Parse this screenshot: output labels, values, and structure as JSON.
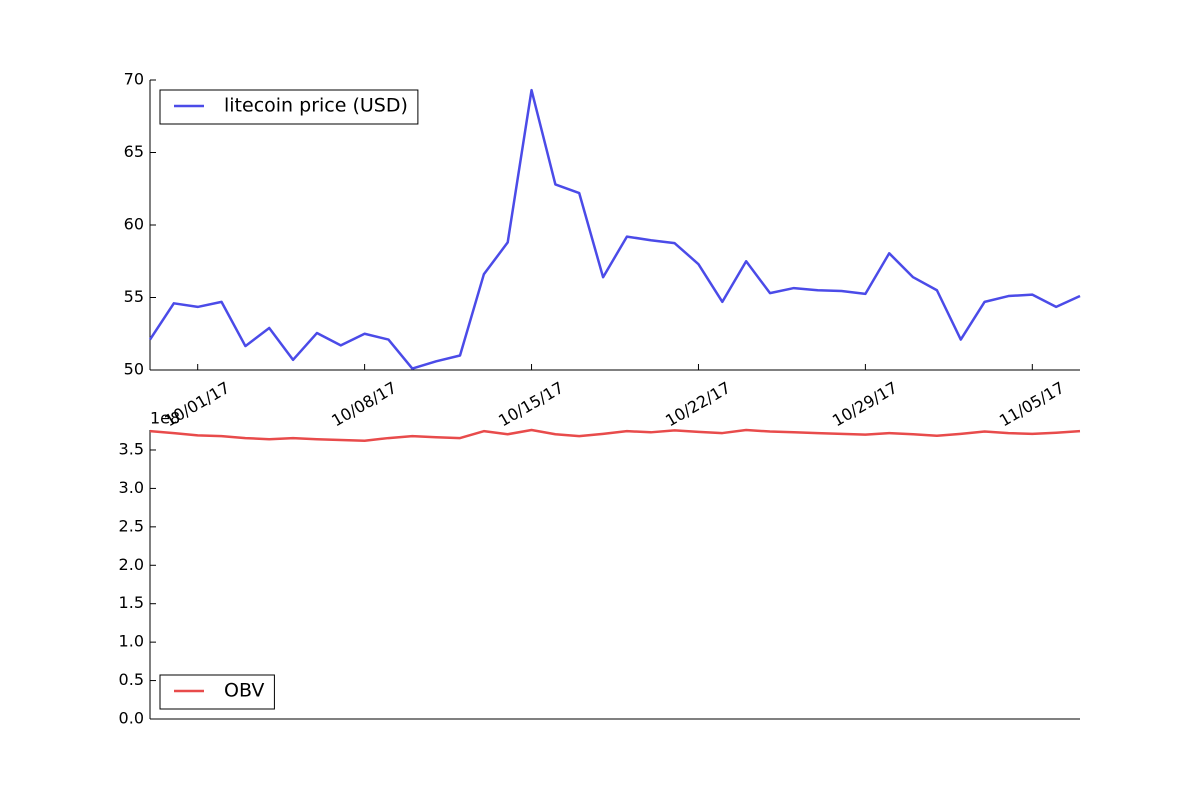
{
  "chart_data": [
    {
      "type": "line",
      "x": [
        "09/29/17",
        "09/30/17",
        "10/01/17",
        "10/02/17",
        "10/03/17",
        "10/04/17",
        "10/05/17",
        "10/06/17",
        "10/07/17",
        "10/08/17",
        "10/09/17",
        "10/10/17",
        "10/11/17",
        "10/12/17",
        "10/13/17",
        "10/14/17",
        "10/15/17",
        "10/16/17",
        "10/17/17",
        "10/18/17",
        "10/19/17",
        "10/20/17",
        "10/21/17",
        "10/22/17",
        "10/23/17",
        "10/24/17",
        "10/25/17",
        "10/26/17",
        "10/27/17",
        "10/28/17",
        "10/29/17",
        "10/30/17",
        "10/31/17",
        "11/01/17",
        "11/02/17",
        "11/03/17",
        "11/04/17",
        "11/05/17",
        "11/06/17",
        "11/07/17"
      ],
      "series": [
        {
          "name": "litecoin price (USD)",
          "color": "#4b4be8",
          "values": [
            52.1,
            54.6,
            54.35,
            54.7,
            51.65,
            52.9,
            50.7,
            52.55,
            51.7,
            52.5,
            52.1,
            50.1,
            50.6,
            51.0,
            56.6,
            58.8,
            69.3,
            62.8,
            62.2,
            56.4,
            59.2,
            58.95,
            58.75,
            57.3,
            54.7,
            57.5,
            55.3,
            55.65,
            55.5,
            55.45,
            55.25,
            58.05,
            56.4,
            55.5,
            52.1,
            54.7,
            55.1,
            55.2,
            54.35,
            55.1
          ]
        }
      ],
      "xlim": [
        "09/29/17",
        "11/07/17"
      ],
      "xticks": [
        "10/01/17",
        "10/08/17",
        "10/15/17",
        "10/22/17",
        "10/29/17",
        "11/05/17"
      ],
      "ylim": [
        50,
        70
      ],
      "yticks": [
        50,
        55,
        60,
        65,
        70
      ],
      "legend": "upper left"
    },
    {
      "type": "line",
      "x": [
        "09/29/17",
        "09/30/17",
        "10/01/17",
        "10/02/17",
        "10/03/17",
        "10/04/17",
        "10/05/17",
        "10/06/17",
        "10/07/17",
        "10/08/17",
        "10/09/17",
        "10/10/17",
        "10/11/17",
        "10/12/17",
        "10/13/17",
        "10/14/17",
        "10/15/17",
        "10/16/17",
        "10/17/17",
        "10/18/17",
        "10/19/17",
        "10/20/17",
        "10/21/17",
        "10/22/17",
        "10/23/17",
        "10/24/17",
        "10/25/17",
        "10/26/17",
        "10/27/17",
        "10/28/17",
        "10/29/17",
        "10/30/17",
        "10/31/17",
        "11/01/17",
        "11/02/17",
        "11/03/17",
        "11/04/17",
        "11/05/17",
        "11/06/17",
        "11/07/17"
      ],
      "series": [
        {
          "name": "OBV",
          "color": "#e84b4b",
          "values": [
            3.745,
            3.72,
            3.69,
            3.68,
            3.655,
            3.64,
            3.655,
            3.64,
            3.63,
            3.62,
            3.655,
            3.68,
            3.665,
            3.655,
            3.745,
            3.705,
            3.76,
            3.705,
            3.68,
            3.71,
            3.745,
            3.73,
            3.755,
            3.735,
            3.72,
            3.76,
            3.74,
            3.73,
            3.72,
            3.71,
            3.7,
            3.72,
            3.705,
            3.685,
            3.71,
            3.74,
            3.72,
            3.71,
            3.725,
            3.745
          ]
        }
      ],
      "xlim": [
        "09/29/17",
        "11/07/17"
      ],
      "ylim": [
        0,
        3.76
      ],
      "yticks": [
        {
          "value": 0,
          "label": "0.0"
        },
        {
          "value": 0.5,
          "label": "0.5"
        },
        {
          "value": 1,
          "label": "1.0"
        },
        {
          "value": 1.5,
          "label": "1.5"
        },
        {
          "value": 2,
          "label": "2.0"
        },
        {
          "value": 2.5,
          "label": "2.5"
        },
        {
          "value": 3,
          "label": "3.0"
        },
        {
          "value": 3.5,
          "label": "3.5"
        }
      ],
      "y_offset_label": "1e8",
      "legend": "lower left"
    }
  ]
}
